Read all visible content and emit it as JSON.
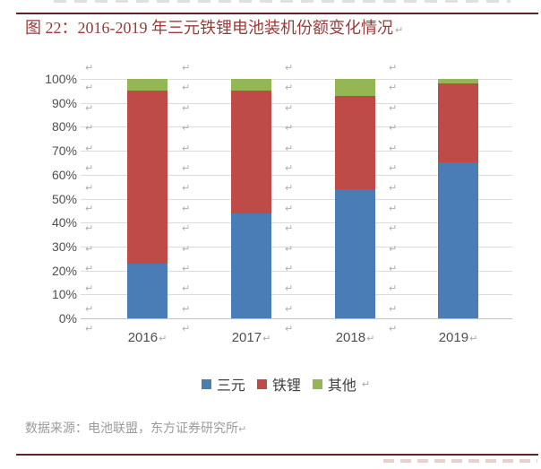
{
  "figure": {
    "title": "图 22：2016-2019 年三元铁锂电池装机份额变化情况"
  },
  "marks": {
    "return_glyph": "↵"
  },
  "theme": {
    "title_color": "#9c3a39",
    "rule_color": "#5e2524",
    "axis_text_color": "#4f4f4f",
    "gridline_color": "#dcdcdc"
  },
  "chart_data": {
    "type": "bar",
    "subtype": "stacked-100-percent",
    "title": "",
    "xlabel": "",
    "ylabel": "",
    "categories": [
      "2016",
      "2017",
      "2018",
      "2019"
    ],
    "series": [
      {
        "name": "三元",
        "color": "#4a7cb5",
        "values": [
          23,
          44,
          54,
          65
        ]
      },
      {
        "name": "铁锂",
        "color": "#be4b47",
        "values": [
          72,
          51,
          39,
          33
        ]
      },
      {
        "name": "其他",
        "color": "#95b654",
        "values": [
          5,
          5,
          7,
          2
        ]
      }
    ],
    "ylim": [
      0,
      100
    ],
    "yticks": [
      "0%",
      "10%",
      "20%",
      "30%",
      "40%",
      "50%",
      "60%",
      "70%",
      "80%",
      "90%",
      "100%"
    ],
    "grid": true,
    "legend_position": "bottom"
  },
  "source": {
    "text": "数据来源：电池联盟，东方证券研究所"
  }
}
